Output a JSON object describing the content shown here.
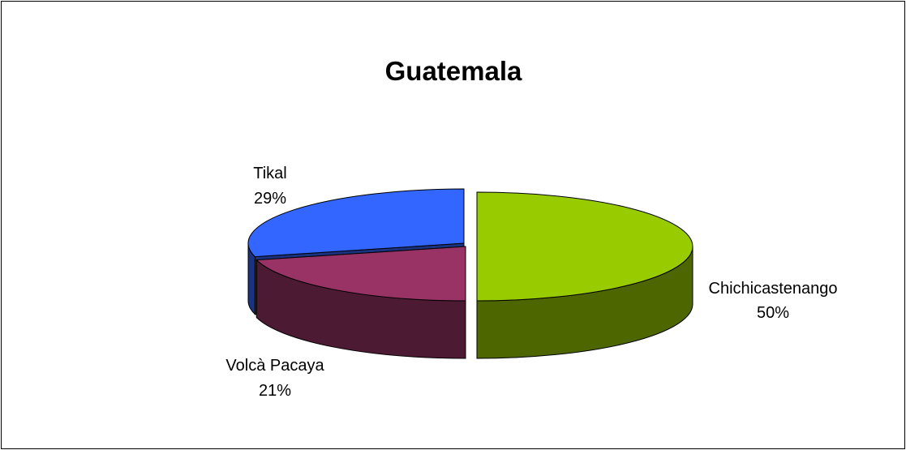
{
  "chart_data": {
    "type": "pie",
    "title": "Guatemala",
    "style": "3d-exploded",
    "slices": [
      {
        "name": "Chichicastenango",
        "value": 50,
        "percent_label": "50%",
        "color": "#99CC00",
        "side_color": "#4D6600"
      },
      {
        "name": "Volcà Pacaya",
        "value": 21,
        "percent_label": "21%",
        "color": "#993366",
        "side_color": "#4D1A33"
      },
      {
        "name": "Tikal",
        "value": 29,
        "percent_label": "29%",
        "color": "#3366FF",
        "side_color": "#1A3380"
      }
    ]
  }
}
